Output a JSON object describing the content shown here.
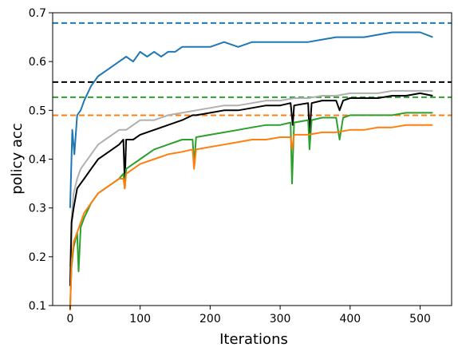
{
  "chart_data": {
    "type": "line",
    "title": "",
    "xlabel": "Iterations",
    "ylabel": "policy acc",
    "xlim": [
      -25,
      545
    ],
    "ylim": [
      0.1,
      0.7
    ],
    "xticks": [
      0,
      100,
      200,
      300,
      400,
      500
    ],
    "yticks": [
      0.1,
      0.2,
      0.3,
      0.4,
      0.5,
      0.6,
      0.7
    ],
    "grid": false,
    "legend": "none",
    "series": [
      {
        "color": "#1f77b4",
        "style": "solid",
        "x": [
          0,
          3,
          6,
          10,
          15,
          20,
          30,
          40,
          50,
          60,
          70,
          80,
          90,
          100,
          110,
          120,
          130,
          140,
          150,
          160,
          180,
          200,
          220,
          240,
          260,
          280,
          300,
          320,
          340,
          360,
          380,
          400,
          420,
          440,
          460,
          480,
          500,
          518
        ],
        "values": [
          0.3,
          0.46,
          0.41,
          0.49,
          0.5,
          0.52,
          0.55,
          0.57,
          0.58,
          0.59,
          0.6,
          0.61,
          0.6,
          0.62,
          0.61,
          0.62,
          0.61,
          0.62,
          0.62,
          0.63,
          0.63,
          0.63,
          0.64,
          0.63,
          0.64,
          0.64,
          0.64,
          0.64,
          0.64,
          0.645,
          0.65,
          0.65,
          0.65,
          0.655,
          0.66,
          0.66,
          0.66,
          0.65
        ]
      },
      {
        "color": "#b0b0b0",
        "style": "solid",
        "x": [
          0,
          2,
          5,
          10,
          15,
          20,
          30,
          40,
          50,
          60,
          70,
          80,
          90,
          100,
          120,
          140,
          160,
          180,
          200,
          220,
          240,
          260,
          280,
          300,
          320,
          340,
          360,
          380,
          400,
          420,
          440,
          460,
          480,
          500,
          518
        ],
        "values": [
          0.18,
          0.28,
          0.33,
          0.36,
          0.38,
          0.39,
          0.41,
          0.43,
          0.44,
          0.45,
          0.46,
          0.46,
          0.47,
          0.48,
          0.48,
          0.49,
          0.495,
          0.5,
          0.505,
          0.51,
          0.51,
          0.515,
          0.52,
          0.52,
          0.525,
          0.525,
          0.53,
          0.53,
          0.535,
          0.535,
          0.535,
          0.54,
          0.54,
          0.54,
          0.54
        ]
      },
      {
        "color": "#000000",
        "style": "solid",
        "x": [
          0,
          2,
          5,
          10,
          15,
          20,
          30,
          40,
          50,
          60,
          70,
          76,
          78,
          80,
          90,
          100,
          120,
          140,
          160,
          175,
          180,
          200,
          220,
          240,
          260,
          280,
          300,
          315,
          318,
          320,
          340,
          342,
          345,
          360,
          380,
          385,
          390,
          400,
          420,
          440,
          460,
          480,
          500,
          518
        ],
        "values": [
          0.14,
          0.27,
          0.3,
          0.34,
          0.35,
          0.36,
          0.38,
          0.4,
          0.41,
          0.42,
          0.43,
          0.44,
          0.35,
          0.44,
          0.44,
          0.45,
          0.46,
          0.47,
          0.48,
          0.49,
          0.49,
          0.495,
          0.5,
          0.5,
          0.505,
          0.51,
          0.51,
          0.515,
          0.47,
          0.51,
          0.515,
          0.45,
          0.515,
          0.52,
          0.52,
          0.5,
          0.52,
          0.525,
          0.525,
          0.525,
          0.53,
          0.53,
          0.535,
          0.53
        ]
      },
      {
        "color": "#2ca02c",
        "style": "solid",
        "x": [
          0,
          2,
          5,
          10,
          12,
          15,
          20,
          30,
          40,
          50,
          60,
          70,
          76,
          78,
          80,
          90,
          100,
          120,
          140,
          160,
          175,
          177,
          180,
          200,
          220,
          240,
          260,
          280,
          300,
          315,
          317,
          320,
          340,
          342,
          345,
          360,
          380,
          385,
          390,
          400,
          420,
          440,
          460,
          480,
          500,
          518
        ],
        "values": [
          0.1,
          0.18,
          0.22,
          0.25,
          0.17,
          0.26,
          0.28,
          0.31,
          0.33,
          0.34,
          0.35,
          0.36,
          0.37,
          0.34,
          0.38,
          0.39,
          0.4,
          0.42,
          0.43,
          0.44,
          0.44,
          0.39,
          0.445,
          0.45,
          0.455,
          0.46,
          0.465,
          0.47,
          0.47,
          0.475,
          0.35,
          0.475,
          0.48,
          0.42,
          0.48,
          0.485,
          0.485,
          0.44,
          0.485,
          0.49,
          0.49,
          0.49,
          0.49,
          0.495,
          0.495,
          0.495
        ]
      },
      {
        "color": "#ff7f0e",
        "style": "solid",
        "x": [
          0,
          2,
          5,
          10,
          15,
          20,
          30,
          40,
          50,
          60,
          70,
          76,
          78,
          80,
          90,
          100,
          120,
          140,
          160,
          175,
          177,
          180,
          200,
          220,
          240,
          260,
          280,
          300,
          315,
          317,
          320,
          340,
          360,
          380,
          400,
          420,
          440,
          460,
          480,
          500,
          518
        ],
        "values": [
          0.09,
          0.19,
          0.23,
          0.25,
          0.27,
          0.29,
          0.31,
          0.33,
          0.34,
          0.35,
          0.36,
          0.36,
          0.34,
          0.37,
          0.38,
          0.39,
          0.4,
          0.41,
          0.415,
          0.42,
          0.38,
          0.42,
          0.425,
          0.43,
          0.435,
          0.44,
          0.44,
          0.445,
          0.445,
          0.42,
          0.45,
          0.45,
          0.455,
          0.455,
          0.46,
          0.46,
          0.465,
          0.465,
          0.47,
          0.47,
          0.47
        ]
      }
    ],
    "hlines": [
      {
        "y": 0.679,
        "color": "#1f77b4",
        "style": "dashed"
      },
      {
        "y": 0.558,
        "color": "#000000",
        "style": "dashed"
      },
      {
        "y": 0.527,
        "color": "#2ca02c",
        "style": "dashed"
      },
      {
        "y": 0.49,
        "color": "#ff7f0e",
        "style": "dashed"
      }
    ]
  }
}
